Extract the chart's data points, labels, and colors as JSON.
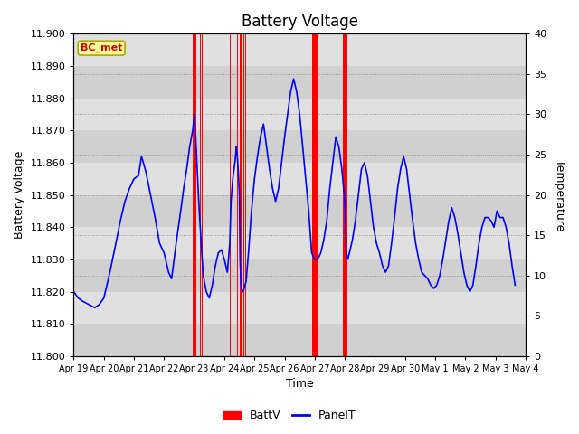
{
  "title": "Battery Voltage",
  "xlabel": "Time",
  "ylabel_left": "Battery Voltage",
  "ylabel_right": "Temperature",
  "ylim_left": [
    11.8,
    11.9
  ],
  "ylim_right": [
    0,
    40
  ],
  "bc_met_label": "BC_met",
  "bc_met_bg": "#ffff99",
  "bc_met_border": "#aaa800",
  "bc_met_text_color": "#cc0000",
  "legend_items": [
    "BattV",
    "PanelT"
  ],
  "batt_color": "red",
  "panel_color": "blue",
  "red_bars": [
    [
      3.95,
      4.08
    ],
    [
      4.18,
      4.22
    ],
    [
      4.24,
      4.28
    ],
    [
      5.18,
      5.22
    ],
    [
      5.42,
      5.46
    ],
    [
      5.52,
      5.58
    ],
    [
      5.62,
      5.66
    ],
    [
      5.68,
      5.72
    ],
    [
      7.92,
      8.12
    ],
    [
      8.92,
      9.08
    ]
  ],
  "panel_t_data": [
    [
      0.0,
      11.82
    ],
    [
      0.15,
      11.818
    ],
    [
      0.3,
      11.817
    ],
    [
      0.5,
      11.816
    ],
    [
      0.7,
      11.815
    ],
    [
      0.85,
      11.816
    ],
    [
      1.0,
      11.818
    ],
    [
      1.2,
      11.826
    ],
    [
      1.4,
      11.835
    ],
    [
      1.55,
      11.842
    ],
    [
      1.7,
      11.848
    ],
    [
      1.85,
      11.852
    ],
    [
      2.0,
      11.855
    ],
    [
      2.15,
      11.856
    ],
    [
      2.25,
      11.862
    ],
    [
      2.4,
      11.857
    ],
    [
      2.55,
      11.85
    ],
    [
      2.7,
      11.843
    ],
    [
      2.85,
      11.835
    ],
    [
      3.0,
      11.832
    ],
    [
      3.15,
      11.826
    ],
    [
      3.25,
      11.824
    ],
    [
      3.4,
      11.835
    ],
    [
      3.55,
      11.845
    ],
    [
      3.65,
      11.852
    ],
    [
      3.75,
      11.858
    ],
    [
      3.85,
      11.865
    ],
    [
      3.95,
      11.87
    ],
    [
      4.0,
      11.875
    ],
    [
      4.05,
      11.868
    ],
    [
      4.1,
      11.858
    ],
    [
      4.15,
      11.848
    ],
    [
      4.2,
      11.84
    ],
    [
      4.25,
      11.832
    ],
    [
      4.3,
      11.825
    ],
    [
      4.4,
      11.82
    ],
    [
      4.5,
      11.818
    ],
    [
      4.6,
      11.822
    ],
    [
      4.7,
      11.828
    ],
    [
      4.8,
      11.832
    ],
    [
      4.9,
      11.833
    ],
    [
      5.0,
      11.83
    ],
    [
      5.1,
      11.826
    ],
    [
      5.18,
      11.835
    ],
    [
      5.22,
      11.848
    ],
    [
      5.28,
      11.855
    ],
    [
      5.35,
      11.86
    ],
    [
      5.4,
      11.865
    ],
    [
      5.42,
      11.863
    ],
    [
      5.46,
      11.858
    ],
    [
      5.5,
      11.85
    ],
    [
      5.52,
      11.83
    ],
    [
      5.56,
      11.821
    ],
    [
      5.6,
      11.82
    ],
    [
      5.62,
      11.82
    ],
    [
      5.66,
      11.821
    ],
    [
      5.68,
      11.822
    ],
    [
      5.72,
      11.823
    ],
    [
      5.8,
      11.832
    ],
    [
      5.9,
      11.845
    ],
    [
      6.0,
      11.855
    ],
    [
      6.1,
      11.862
    ],
    [
      6.2,
      11.868
    ],
    [
      6.3,
      11.872
    ],
    [
      6.4,
      11.865
    ],
    [
      6.5,
      11.858
    ],
    [
      6.6,
      11.852
    ],
    [
      6.7,
      11.848
    ],
    [
      6.8,
      11.852
    ],
    [
      6.9,
      11.86
    ],
    [
      7.0,
      11.868
    ],
    [
      7.1,
      11.875
    ],
    [
      7.2,
      11.882
    ],
    [
      7.3,
      11.886
    ],
    [
      7.4,
      11.882
    ],
    [
      7.5,
      11.875
    ],
    [
      7.6,
      11.865
    ],
    [
      7.7,
      11.855
    ],
    [
      7.8,
      11.845
    ],
    [
      7.9,
      11.832
    ],
    [
      8.0,
      11.83
    ],
    [
      8.1,
      11.83
    ],
    [
      8.2,
      11.832
    ],
    [
      8.3,
      11.836
    ],
    [
      8.4,
      11.842
    ],
    [
      8.5,
      11.852
    ],
    [
      8.6,
      11.86
    ],
    [
      8.7,
      11.868
    ],
    [
      8.8,
      11.865
    ],
    [
      8.9,
      11.858
    ],
    [
      9.0,
      11.848
    ],
    [
      9.05,
      11.832
    ],
    [
      9.1,
      11.83
    ],
    [
      9.15,
      11.832
    ],
    [
      9.25,
      11.836
    ],
    [
      9.35,
      11.842
    ],
    [
      9.45,
      11.85
    ],
    [
      9.55,
      11.858
    ],
    [
      9.65,
      11.86
    ],
    [
      9.75,
      11.856
    ],
    [
      9.85,
      11.848
    ],
    [
      9.95,
      11.84
    ],
    [
      10.05,
      11.835
    ],
    [
      10.15,
      11.832
    ],
    [
      10.25,
      11.828
    ],
    [
      10.35,
      11.826
    ],
    [
      10.45,
      11.828
    ],
    [
      10.55,
      11.835
    ],
    [
      10.65,
      11.843
    ],
    [
      10.75,
      11.852
    ],
    [
      10.85,
      11.858
    ],
    [
      10.95,
      11.862
    ],
    [
      11.05,
      11.858
    ],
    [
      11.15,
      11.85
    ],
    [
      11.25,
      11.842
    ],
    [
      11.35,
      11.835
    ],
    [
      11.45,
      11.83
    ],
    [
      11.55,
      11.826
    ],
    [
      11.65,
      11.825
    ],
    [
      11.75,
      11.824
    ],
    [
      11.85,
      11.822
    ],
    [
      11.95,
      11.821
    ],
    [
      12.05,
      11.822
    ],
    [
      12.15,
      11.825
    ],
    [
      12.25,
      11.83
    ],
    [
      12.35,
      11.836
    ],
    [
      12.45,
      11.842
    ],
    [
      12.55,
      11.846
    ],
    [
      12.65,
      11.843
    ],
    [
      12.75,
      11.838
    ],
    [
      12.85,
      11.832
    ],
    [
      12.95,
      11.826
    ],
    [
      13.05,
      11.822
    ],
    [
      13.15,
      11.82
    ],
    [
      13.25,
      11.822
    ],
    [
      13.35,
      11.828
    ],
    [
      13.45,
      11.835
    ],
    [
      13.55,
      11.84
    ],
    [
      13.65,
      11.843
    ],
    [
      13.75,
      11.843
    ],
    [
      13.85,
      11.842
    ],
    [
      13.95,
      11.84
    ],
    [
      14.05,
      11.845
    ],
    [
      14.15,
      11.843
    ],
    [
      14.25,
      11.843
    ],
    [
      14.35,
      11.84
    ],
    [
      14.45,
      11.835
    ],
    [
      14.55,
      11.828
    ],
    [
      14.65,
      11.822
    ]
  ],
  "x_tick_labels": [
    "Apr 19",
    "Apr 20",
    "Apr 21",
    "Apr 22",
    "Apr 23",
    "Apr 24",
    "Apr 25",
    "Apr 26",
    "Apr 27",
    "Apr 28",
    "Apr 29",
    "Apr 30",
    "May 1",
    "May 2",
    "May 3",
    "May 4"
  ],
  "x_tick_positions": [
    0,
    1,
    2,
    3,
    4,
    5,
    6,
    7,
    8,
    9,
    10,
    11,
    12,
    13,
    14,
    15
  ],
  "yticks_left": [
    11.8,
    11.81,
    11.82,
    11.83,
    11.84,
    11.85,
    11.86,
    11.87,
    11.88,
    11.89,
    11.9
  ],
  "yticks_right": [
    0,
    5,
    10,
    15,
    20,
    25,
    30,
    35,
    40
  ],
  "band_colors": [
    "#d0d0d0",
    "#e0e0e0"
  ]
}
